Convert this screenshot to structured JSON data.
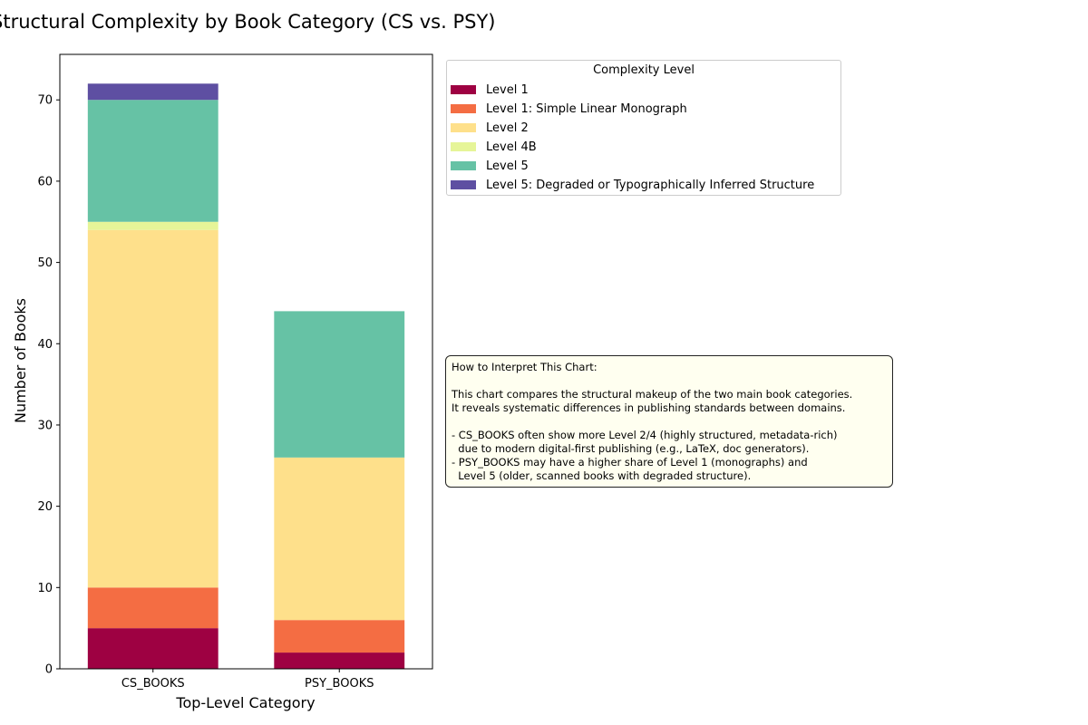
{
  "chart_data": {
    "type": "bar",
    "stacked": true,
    "title": "Structural Complexity by Book Category (CS vs. PSY)",
    "xlabel": "Top-Level Category",
    "ylabel": "Number of Books",
    "categories": [
      "CS_BOOKS",
      "PSY_BOOKS"
    ],
    "ylim": [
      0,
      75.6
    ],
    "yticks": [
      0,
      10,
      20,
      30,
      40,
      50,
      60,
      70
    ],
    "grid": false,
    "legend_title": "Complexity Level",
    "legend_position": "outside-upper-right",
    "series": [
      {
        "name": "Level 1",
        "color": "#9e0142",
        "values": [
          5,
          2
        ]
      },
      {
        "name": "Level 1: Simple Linear Monograph",
        "color": "#f46d43",
        "values": [
          5,
          4
        ]
      },
      {
        "name": "Level 2",
        "color": "#fee08b",
        "values": [
          44,
          20
        ]
      },
      {
        "name": "Level 4B",
        "color": "#e6f598",
        "values": [
          1,
          0
        ]
      },
      {
        "name": "Level 5",
        "color": "#66c2a5",
        "values": [
          15,
          18
        ]
      },
      {
        "name": "Level 5: Degraded or Typographically Inferred Structure",
        "color": "#5e4fa2",
        "values": [
          2,
          0
        ]
      }
    ]
  },
  "annotation": {
    "text": "How to Interpret This Chart:\n\nThis chart compares the structural makeup of the two main book categories.\nIt reveals systematic differences in publishing standards between domains.\n\n- CS_BOOKS often show more Level 2/4 (highly structured, metadata-rich)\n  due to modern digital-first publishing (e.g., LaTeX, doc generators).\n- PSY_BOOKS may have a higher share of Level 1 (monographs) and\n  Level 5 (older, scanned books with degraded structure)."
  }
}
